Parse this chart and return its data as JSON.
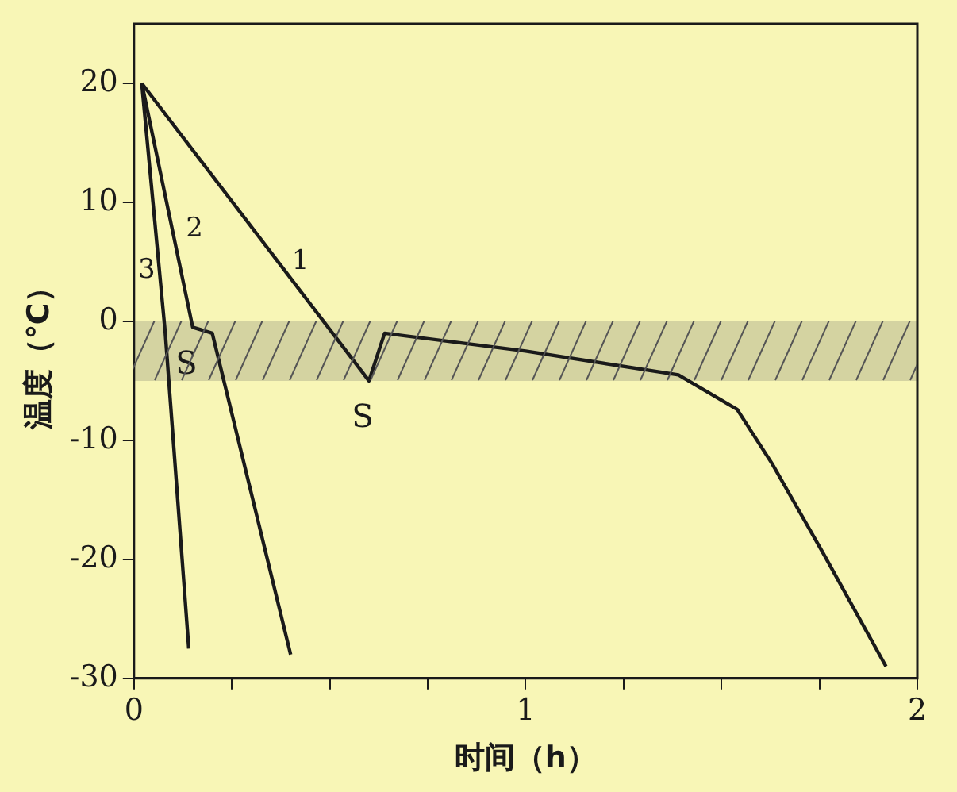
{
  "chart_data": {
    "type": "line",
    "xlabel": "时间（h）",
    "ylabel": "温度（℃）",
    "xlim": [
      0,
      2
    ],
    "ylim": [
      -30,
      25
    ],
    "xticks": [
      0,
      {
        "value": 0.25,
        "label": null
      },
      {
        "value": 0.5,
        "label": null
      },
      {
        "value": 0.75,
        "label": null
      },
      1,
      {
        "value": 1.25,
        "label": null
      },
      {
        "value": 1.5,
        "label": null
      },
      {
        "value": 1.75,
        "label": null
      },
      2
    ],
    "yticks": [
      -30,
      -20,
      -10,
      0,
      10,
      20
    ],
    "series": [
      {
        "name": "1",
        "color": "#1a1a1a",
        "x": [
          0.02,
          0.6,
          0.64,
          1.0,
          1.39,
          1.54,
          1.63,
          1.76,
          1.92
        ],
        "values": [
          20,
          -5,
          -1,
          -2.5,
          -4.5,
          -7.4,
          -12,
          -19.5,
          -29
        ]
      },
      {
        "name": "2",
        "color": "#1a1a1a",
        "x": [
          0.02,
          0.15,
          0.2,
          0.4
        ],
        "values": [
          20,
          -0.5,
          -1,
          -28
        ]
      },
      {
        "name": "3",
        "color": "#1a1a1a",
        "x": [
          0.02,
          0.08,
          0.14
        ],
        "values": [
          20,
          -1,
          -27.5
        ]
      }
    ],
    "bands": [
      {
        "axis": "y",
        "from": -5,
        "to": 0,
        "color": "#555555"
      }
    ],
    "annotations": [
      {
        "text": "S",
        "x": 0.15,
        "y": -0.5
      },
      {
        "text": "S",
        "x": 0.6,
        "y": -5
      }
    ],
    "grid": false,
    "legend": false,
    "marker": "none",
    "line_style": "solid"
  }
}
